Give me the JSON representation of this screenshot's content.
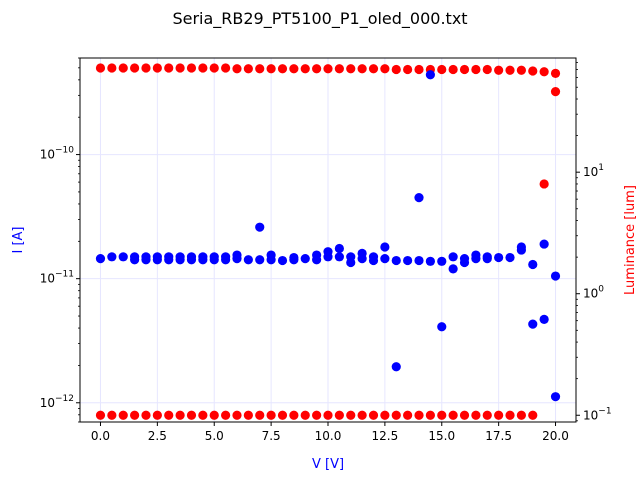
{
  "chart_data": {
    "type": "scatter",
    "title": "Seria_RB29_PT5100_P1_oled_000.txt",
    "xlabel": "V [V]",
    "ylabel_left": "I [A]",
    "ylabel_right": "Luminance [lum]",
    "xlim": [
      -0.9,
      20.9
    ],
    "ylim_left": [
      7e-13,
      6e-10
    ],
    "ylim_right": [
      0.088,
      87
    ],
    "yscale_left": "log",
    "yscale_right": "log",
    "grid": true,
    "x_ticks": [
      "0.0",
      "2.5",
      "5.0",
      "7.5",
      "10.0",
      "12.5",
      "15.0",
      "17.5",
      "20.0"
    ],
    "x_tick_values": [
      0,
      2.5,
      5,
      7.5,
      10,
      12.5,
      15,
      17.5,
      20
    ],
    "y_left_ticks": [
      {
        "value": 1e-10,
        "base": "10",
        "exp": "−10"
      },
      {
        "value": 1e-11,
        "base": "10",
        "exp": "−11"
      },
      {
        "value": 1e-12,
        "base": "10",
        "exp": "−12"
      }
    ],
    "y_right_ticks": [
      {
        "value": 10,
        "base": "10",
        "exp": "1"
      },
      {
        "value": 1,
        "base": "10",
        "exp": "0"
      },
      {
        "value": 0.1,
        "base": "10",
        "exp": "−1"
      }
    ],
    "colors": {
      "current": "#0000ff",
      "luminance": "#ff0000",
      "grid": "#e6e6ff",
      "axis": "#000000"
    },
    "series": [
      {
        "axis": "left",
        "color": "#0000ff",
        "points": [
          [
            0.0,
            1.45e-11
          ],
          [
            0.5,
            1.5e-11
          ],
          [
            1.0,
            1.5e-11
          ],
          [
            1.5,
            1.5e-11
          ],
          [
            1.5,
            1.42e-11
          ],
          [
            2.0,
            1.5e-11
          ],
          [
            2.0,
            1.42e-11
          ],
          [
            2.5,
            1.5e-11
          ],
          [
            2.5,
            1.42e-11
          ],
          [
            3.0,
            1.5e-11
          ],
          [
            3.0,
            1.42e-11
          ],
          [
            3.5,
            1.5e-11
          ],
          [
            3.5,
            1.42e-11
          ],
          [
            4.0,
            1.5e-11
          ],
          [
            4.0,
            1.42e-11
          ],
          [
            4.5,
            1.5e-11
          ],
          [
            4.5,
            1.42e-11
          ],
          [
            5.0,
            1.5e-11
          ],
          [
            5.0,
            1.42e-11
          ],
          [
            5.5,
            1.5e-11
          ],
          [
            5.5,
            1.42e-11
          ],
          [
            6.0,
            1.55e-11
          ],
          [
            6.0,
            1.45e-11
          ],
          [
            6.5,
            1.42e-11
          ],
          [
            7.0,
            2.6e-11
          ],
          [
            7.0,
            1.42e-11
          ],
          [
            7.5,
            1.55e-11
          ],
          [
            7.5,
            1.42e-11
          ],
          [
            8.0,
            1.4e-11
          ],
          [
            8.5,
            1.48e-11
          ],
          [
            8.5,
            1.42e-11
          ],
          [
            9.0,
            1.45e-11
          ],
          [
            9.5,
            1.55e-11
          ],
          [
            9.5,
            1.42e-11
          ],
          [
            10.0,
            1.65e-11
          ],
          [
            10.0,
            1.5e-11
          ],
          [
            10.5,
            1.75e-11
          ],
          [
            10.5,
            1.5e-11
          ],
          [
            11.0,
            1.5e-11
          ],
          [
            11.0,
            1.35e-11
          ],
          [
            11.5,
            1.6e-11
          ],
          [
            11.5,
            1.45e-11
          ],
          [
            12.0,
            1.5e-11
          ],
          [
            12.0,
            1.4e-11
          ],
          [
            12.5,
            1.8e-11
          ],
          [
            12.5,
            1.45e-11
          ],
          [
            13.0,
            1.4e-11
          ],
          [
            13.0,
            1.95e-12
          ],
          [
            13.5,
            1.4e-11
          ],
          [
            14.0,
            4.5e-11
          ],
          [
            14.0,
            1.4e-11
          ],
          [
            14.5,
            4.4e-10
          ],
          [
            14.5,
            1.38e-11
          ],
          [
            15.0,
            1.38e-11
          ],
          [
            15.0,
            4.1e-12
          ],
          [
            15.5,
            1.5e-11
          ],
          [
            15.5,
            1.2e-11
          ],
          [
            16.0,
            1.45e-11
          ],
          [
            16.0,
            1.35e-11
          ],
          [
            16.5,
            1.55e-11
          ],
          [
            16.5,
            1.45e-11
          ],
          [
            17.0,
            1.5e-11
          ],
          [
            17.0,
            1.45e-11
          ],
          [
            17.5,
            1.48e-11
          ],
          [
            18.0,
            1.48e-11
          ],
          [
            18.5,
            1.8e-11
          ],
          [
            18.5,
            1.7e-11
          ],
          [
            19.0,
            1.3e-11
          ],
          [
            19.0,
            4.3e-12
          ],
          [
            19.5,
            1.9e-11
          ],
          [
            19.5,
            4.7e-12
          ],
          [
            20.0,
            1.05e-11
          ],
          [
            20.0,
            1.12e-12
          ]
        ]
      },
      {
        "axis": "right",
        "color": "#ff0000",
        "points": [
          [
            0.0,
            72
          ],
          [
            0.5,
            72
          ],
          [
            1.0,
            72
          ],
          [
            1.5,
            72
          ],
          [
            2.0,
            72
          ],
          [
            2.5,
            72
          ],
          [
            3.0,
            72
          ],
          [
            3.5,
            72
          ],
          [
            4.0,
            72
          ],
          [
            4.5,
            72
          ],
          [
            5.0,
            72
          ],
          [
            5.5,
            72
          ],
          [
            6.0,
            71
          ],
          [
            6.5,
            71
          ],
          [
            7.0,
            71
          ],
          [
            7.5,
            71
          ],
          [
            8.0,
            71
          ],
          [
            8.5,
            71
          ],
          [
            9.0,
            71
          ],
          [
            9.5,
            71
          ],
          [
            10.0,
            71
          ],
          [
            10.5,
            71
          ],
          [
            11.0,
            71
          ],
          [
            11.5,
            71
          ],
          [
            12.0,
            71
          ],
          [
            12.5,
            71
          ],
          [
            13.0,
            70
          ],
          [
            13.5,
            70
          ],
          [
            14.0,
            70
          ],
          [
            14.5,
            70
          ],
          [
            15.0,
            70
          ],
          [
            15.5,
            70
          ],
          [
            16.0,
            70
          ],
          [
            16.5,
            70
          ],
          [
            17.0,
            70
          ],
          [
            17.5,
            69
          ],
          [
            18.0,
            69
          ],
          [
            18.5,
            69
          ],
          [
            19.0,
            68
          ],
          [
            19.5,
            67
          ],
          [
            20.0,
            65
          ],
          [
            20.0,
            46
          ],
          [
            19.5,
            8.0
          ],
          [
            0.0,
            0.1
          ],
          [
            0.5,
            0.1
          ],
          [
            1.0,
            0.1
          ],
          [
            1.5,
            0.1
          ],
          [
            2.0,
            0.1
          ],
          [
            2.5,
            0.1
          ],
          [
            3.0,
            0.1
          ],
          [
            3.5,
            0.1
          ],
          [
            4.0,
            0.1
          ],
          [
            4.5,
            0.1
          ],
          [
            5.0,
            0.1
          ],
          [
            5.5,
            0.1
          ],
          [
            6.0,
            0.1
          ],
          [
            6.5,
            0.1
          ],
          [
            7.0,
            0.1
          ],
          [
            7.5,
            0.1
          ],
          [
            8.0,
            0.1
          ],
          [
            8.5,
            0.1
          ],
          [
            9.0,
            0.1
          ],
          [
            9.5,
            0.1
          ],
          [
            10.0,
            0.1
          ],
          [
            10.5,
            0.1
          ],
          [
            11.0,
            0.1
          ],
          [
            11.5,
            0.1
          ],
          [
            12.0,
            0.1
          ],
          [
            12.5,
            0.1
          ],
          [
            13.0,
            0.1
          ],
          [
            13.5,
            0.1
          ],
          [
            14.0,
            0.1
          ],
          [
            14.5,
            0.1
          ],
          [
            15.0,
            0.1
          ],
          [
            15.5,
            0.1
          ],
          [
            16.0,
            0.1
          ],
          [
            16.5,
            0.1
          ],
          [
            17.0,
            0.1
          ],
          [
            17.5,
            0.1
          ],
          [
            18.0,
            0.1
          ],
          [
            18.5,
            0.1
          ],
          [
            19.0,
            0.1
          ]
        ]
      }
    ]
  }
}
